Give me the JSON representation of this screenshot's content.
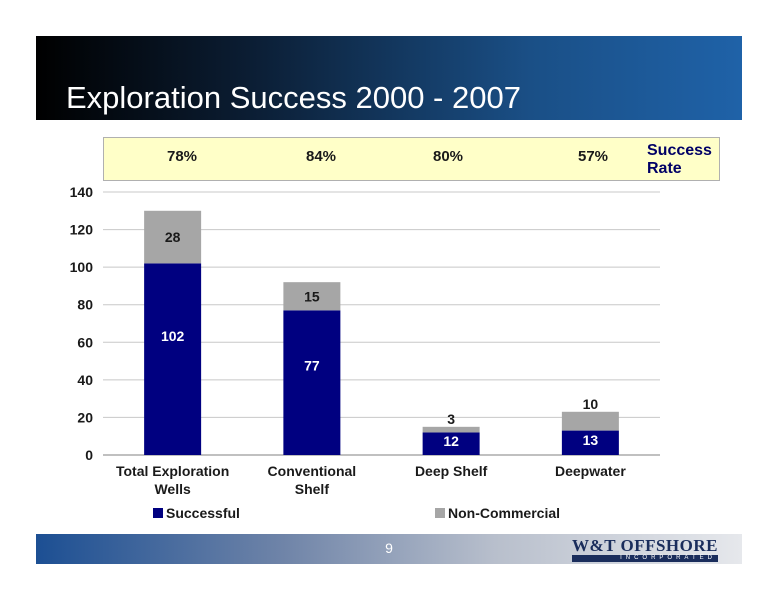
{
  "title": "Exploration Success 2000 - 2007",
  "success_rate": {
    "label": "Success Rate",
    "values": [
      "78%",
      "84%",
      "80%",
      "57%"
    ]
  },
  "chart_data": {
    "type": "bar",
    "stacked": true,
    "categories": [
      [
        "Total Exploration",
        "Wells"
      ],
      [
        "Conventional",
        "Shelf"
      ],
      [
        "Deep Shelf"
      ],
      [
        "Deepwater"
      ]
    ],
    "series": [
      {
        "name": "Successful",
        "values": [
          102,
          77,
          12,
          13
        ],
        "color": "#000080"
      },
      {
        "name": "Non-Commercial",
        "values": [
          28,
          15,
          3,
          10
        ],
        "color": "#a6a6a6"
      }
    ],
    "ylim": [
      0,
      140
    ],
    "yticks": [
      0,
      20,
      40,
      60,
      80,
      100,
      120,
      140
    ],
    "grid": true,
    "legend": "bottom"
  },
  "footer": {
    "page_number": "9",
    "logo_name": "W&T OFFSHORE",
    "logo_sub": "INCORPORATED"
  }
}
